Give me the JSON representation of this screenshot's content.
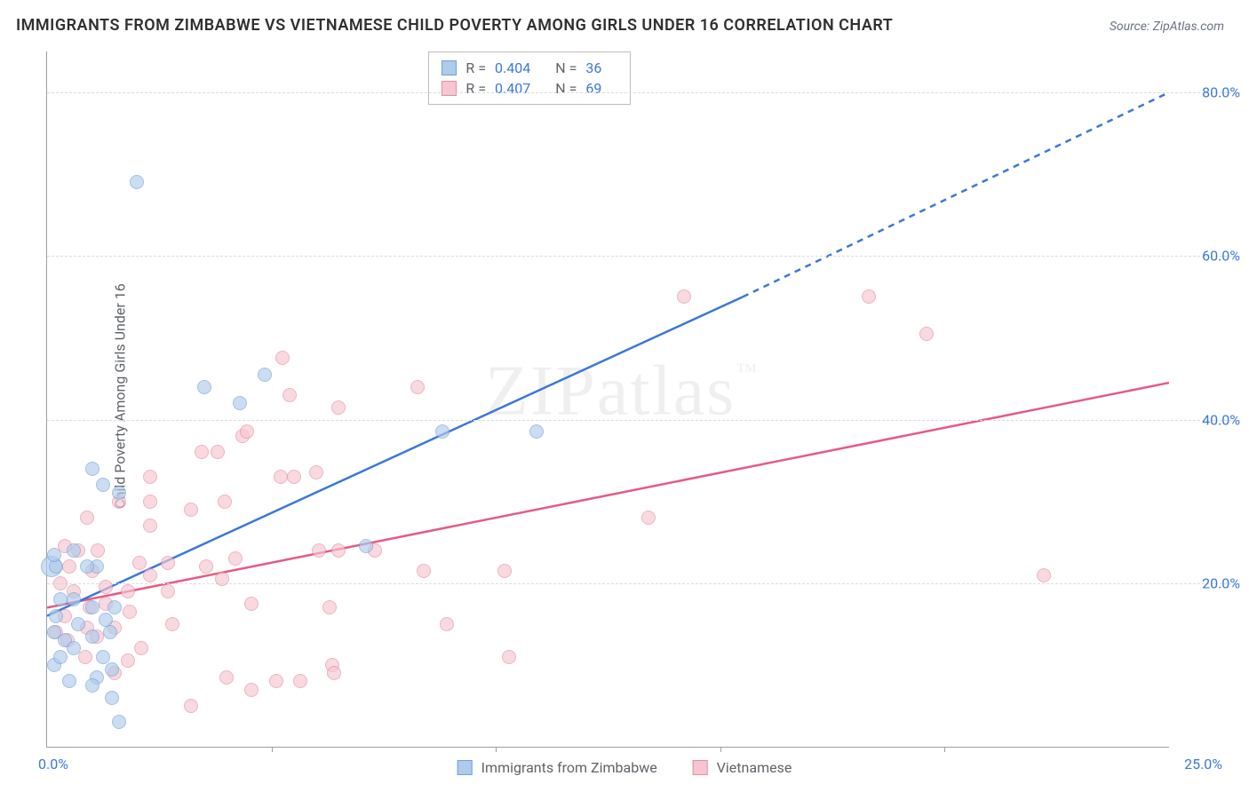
{
  "title": "IMMIGRANTS FROM ZIMBABWE VS VIETNAMESE CHILD POVERTY AMONG GIRLS UNDER 16 CORRELATION CHART",
  "source": "Source: ZipAtlas.com",
  "ylabel": "Child Poverty Among Girls Under 16",
  "watermark": "ZIPatlas",
  "chart": {
    "type": "scatter-with-regression",
    "xlim": [
      0,
      25
    ],
    "ylim": [
      0,
      85
    ],
    "ytick_labels": [
      "20.0%",
      "40.0%",
      "60.0%",
      "80.0%"
    ],
    "ytick_values": [
      20,
      40,
      60,
      80
    ],
    "xtick_origin": "0.0%",
    "xtick_max": "25.0%",
    "xtick_mark_positions": [
      5,
      10,
      15,
      20
    ],
    "grid_color": "#dadce0",
    "axis_color": "#9aa0a6",
    "background_color": "#ffffff",
    "series": [
      {
        "name": "Immigrants from Zimbabwe",
        "fill_color": "#aecbeb",
        "stroke_color": "#6fa0dc",
        "line_color": "#3b78d8",
        "r_label": "R =",
        "r_value": "0.404",
        "n_label": "N =",
        "n_value": "36",
        "regression": {
          "x1": 0,
          "y1": 16,
          "x2_solid": 15.5,
          "y2_solid": 55,
          "x2_dash": 25,
          "y2_dash": 80
        },
        "points": [
          [
            0.2,
            16
          ],
          [
            0.2,
            22
          ],
          [
            0.15,
            23.5
          ],
          [
            0.3,
            18
          ],
          [
            0.15,
            10
          ],
          [
            0.15,
            14
          ],
          [
            0.4,
            13
          ],
          [
            0.6,
            24
          ],
          [
            1.0,
            13.5
          ],
          [
            1.0,
            17
          ],
          [
            1.1,
            8.5
          ],
          [
            1.1,
            22
          ],
          [
            1.3,
            15.5
          ],
          [
            1.25,
            11
          ],
          [
            1.45,
            9.5
          ],
          [
            1.4,
            14
          ],
          [
            0.7,
            15
          ],
          [
            0.6,
            18
          ],
          [
            0.9,
            22
          ],
          [
            1.25,
            32
          ],
          [
            1.5,
            17
          ],
          [
            1.6,
            3
          ],
          [
            1.45,
            6
          ],
          [
            1.0,
            7.5
          ],
          [
            2.0,
            69
          ],
          [
            4.85,
            45.5
          ],
          [
            3.5,
            44
          ],
          [
            4.3,
            42
          ],
          [
            7.1,
            24.5
          ],
          [
            8.8,
            38.5
          ],
          [
            10.9,
            38.5
          ],
          [
            1.0,
            34
          ],
          [
            1.6,
            31
          ],
          [
            0.3,
            11
          ],
          [
            0.5,
            8
          ],
          [
            0.6,
            12
          ]
        ]
      },
      {
        "name": "Vietnamese",
        "fill_color": "#f5c6d1",
        "stroke_color": "#e88ba3",
        "line_color": "#e65a83",
        "r_label": "R =",
        "r_value": "0.407",
        "n_label": "N =",
        "n_value": "69",
        "regression": {
          "x1": 0,
          "y1": 17,
          "x2_solid": 25,
          "y2_solid": 44.5,
          "x2_dash": 25,
          "y2_dash": 44.5
        },
        "points": [
          [
            0.3,
            20
          ],
          [
            0.4,
            16
          ],
          [
            0.5,
            22
          ],
          [
            0.6,
            19
          ],
          [
            0.9,
            28
          ],
          [
            0.95,
            17
          ],
          [
            1.0,
            21.5
          ],
          [
            1.12,
            24
          ],
          [
            1.3,
            19.5
          ],
          [
            0.45,
            13
          ],
          [
            0.85,
            11
          ],
          [
            1.1,
            13.5
          ],
          [
            1.3,
            17.5
          ],
          [
            1.5,
            9
          ],
          [
            1.5,
            14.5
          ],
          [
            1.8,
            19
          ],
          [
            1.85,
            16.5
          ],
          [
            2.3,
            27
          ],
          [
            2.3,
            33
          ],
          [
            2.3,
            21
          ],
          [
            2.7,
            19
          ],
          [
            2.7,
            22.5
          ],
          [
            2.8,
            15
          ],
          [
            3.2,
            29
          ],
          [
            3.45,
            36
          ],
          [
            3.2,
            5
          ],
          [
            3.9,
            20.5
          ],
          [
            3.95,
            30
          ],
          [
            3.8,
            36
          ],
          [
            4.2,
            23
          ],
          [
            5.1,
            8
          ],
          [
            4.0,
            8.5
          ],
          [
            4.55,
            17.5
          ],
          [
            5.4,
            43
          ],
          [
            5.2,
            33
          ],
          [
            5.25,
            47.5
          ],
          [
            5.5,
            33
          ],
          [
            6.0,
            33.5
          ],
          [
            6.05,
            24
          ],
          [
            6.35,
            10
          ],
          [
            6.4,
            9
          ],
          [
            6.5,
            24
          ],
          [
            6.3,
            17
          ],
          [
            6.5,
            41.5
          ],
          [
            7.3,
            24
          ],
          [
            8.25,
            44
          ],
          [
            8.4,
            21.5
          ],
          [
            8.9,
            15
          ],
          [
            10.2,
            21.5
          ],
          [
            10.3,
            11
          ],
          [
            13.4,
            28
          ],
          [
            14.2,
            55
          ],
          [
            18.3,
            55
          ],
          [
            19.6,
            50.5
          ],
          [
            22.2,
            21
          ],
          [
            1.6,
            30
          ],
          [
            4.35,
            38
          ],
          [
            4.45,
            38.5
          ],
          [
            1.8,
            10.5
          ],
          [
            0.7,
            24
          ],
          [
            2.1,
            12
          ],
          [
            2.3,
            30
          ],
          [
            4.55,
            7
          ],
          [
            3.55,
            22
          ],
          [
            5.65,
            8
          ],
          [
            0.2,
            14
          ],
          [
            0.9,
            14.5
          ],
          [
            0.4,
            24.5
          ],
          [
            2.05,
            22.5
          ]
        ]
      }
    ]
  }
}
